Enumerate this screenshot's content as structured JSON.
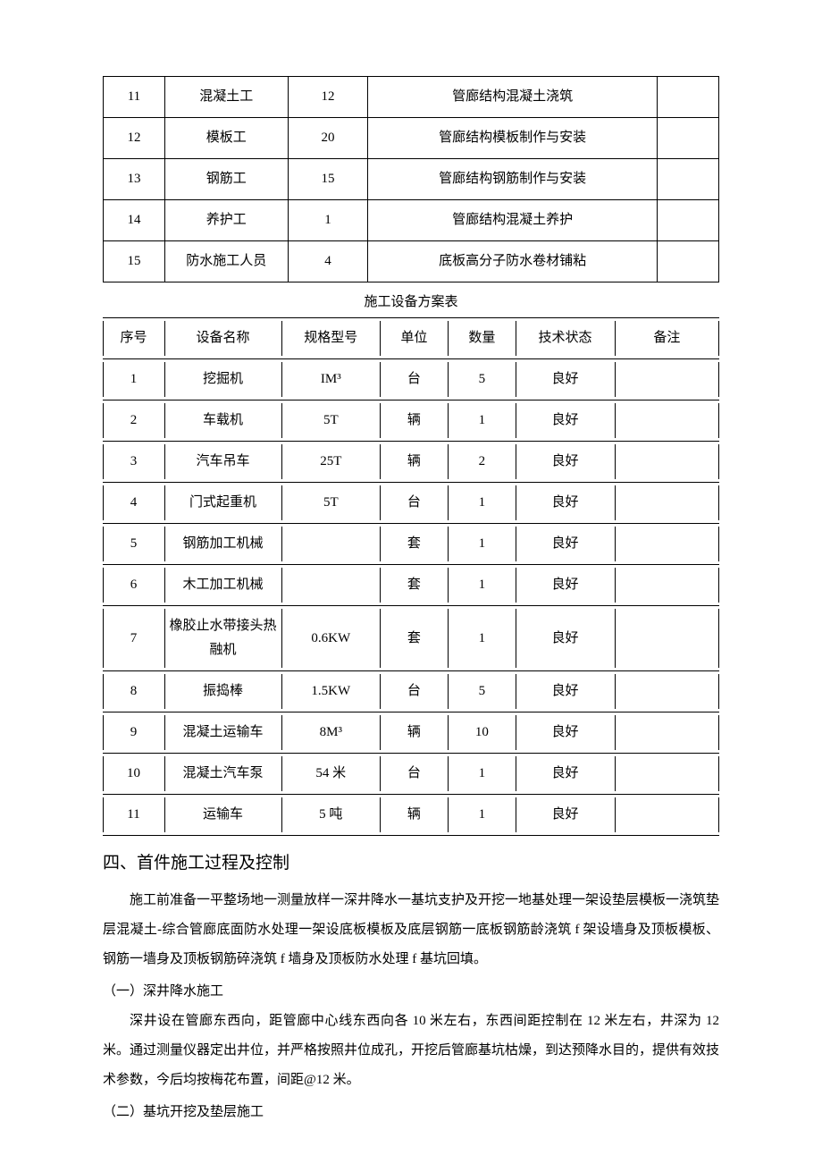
{
  "table1": {
    "rows": [
      {
        "no": "11",
        "name": "混凝土工",
        "qty": "12",
        "desc": "管廊结构混凝土浇筑",
        "remark": ""
      },
      {
        "no": "12",
        "name": "模板工",
        "qty": "20",
        "desc": "管廊结构模板制作与安装",
        "remark": ""
      },
      {
        "no": "13",
        "name": "钢筋工",
        "qty": "15",
        "desc": "管廊结构钢筋制作与安装",
        "remark": ""
      },
      {
        "no": "14",
        "name": "养护工",
        "qty": "1",
        "desc": "管廊结构混凝土养护",
        "remark": ""
      },
      {
        "no": "15",
        "name": "防水施工人员",
        "qty": "4",
        "desc": "底板高分子防水卷材铺粘",
        "remark": ""
      }
    ]
  },
  "table2": {
    "title": "施工设备方案表",
    "headers": {
      "no": "序号",
      "name": "设备名称",
      "spec": "规格型号",
      "unit": "单位",
      "qty": "数量",
      "status": "技术状态",
      "remark": "备注"
    },
    "rows": [
      {
        "no": "1",
        "name": "挖掘机",
        "spec": "IM³",
        "unit": "台",
        "qty": "5",
        "status": "良好",
        "remark": ""
      },
      {
        "no": "2",
        "name": "车载机",
        "spec": "5T",
        "unit": "辆",
        "qty": "1",
        "status": "良好",
        "remark": ""
      },
      {
        "no": "3",
        "name": "汽车吊车",
        "spec": "25T",
        "unit": "辆",
        "qty": "2",
        "status": "良好",
        "remark": ""
      },
      {
        "no": "4",
        "name": "门式起重机",
        "spec": "5T",
        "unit": "台",
        "qty": "1",
        "status": "良好",
        "remark": ""
      },
      {
        "no": "5",
        "name": "钢筋加工机械",
        "spec": "",
        "unit": "套",
        "qty": "1",
        "status": "良好",
        "remark": ""
      },
      {
        "no": "6",
        "name": "木工加工机械",
        "spec": "",
        "unit": "套",
        "qty": "1",
        "status": "良好",
        "remark": ""
      },
      {
        "no": "7",
        "name": "橡胶止水带接头热融机",
        "spec": "0.6KW",
        "unit": "套",
        "qty": "1",
        "status": "良好",
        "remark": ""
      },
      {
        "no": "8",
        "name": "振捣棒",
        "spec": "1.5KW",
        "unit": "台",
        "qty": "5",
        "status": "良好",
        "remark": ""
      },
      {
        "no": "9",
        "name": "混凝土运输车",
        "spec": "8M³",
        "unit": "辆",
        "qty": "10",
        "status": "良好",
        "remark": ""
      },
      {
        "no": "10",
        "name": "混凝土汽车泵",
        "spec": "54 米",
        "unit": "台",
        "qty": "1",
        "status": "良好",
        "remark": ""
      },
      {
        "no": "11",
        "name": "运输车",
        "spec": "5 吨",
        "unit": "辆",
        "qty": "1",
        "status": "良好",
        "remark": ""
      }
    ]
  },
  "heading4": "四、首件施工过程及控制",
  "para1": "施工前准备一平整场地一测量放样一深井降水一基坑支护及开挖一地基处理一架设垫层模板一浇筑垫层混凝土-综合管廊底面防水处理一架设底板模板及底层钢筋一底板钢筋龄浇筑 f 架设墙身及顶板模板、钢筋一墙身及顶板钢筋碎浇筑 f 墙身及顶板防水处理 f 基坑回填。",
  "sub1": "（一）深井降水施工",
  "para2": "深井设在管廊东西向，距管廊中心线东西向各 10 米左右，东西间距控制在 12 米左右，井深为 12 米。通过测量仪器定出井位，并严格按照井位成孔，开挖后管廊基坑枯燥，到达预降水目的，提供有效技术参数，今后均按梅花布置，间距@12 米。",
  "sub2": "（二）基坑开挖及垫层施工"
}
